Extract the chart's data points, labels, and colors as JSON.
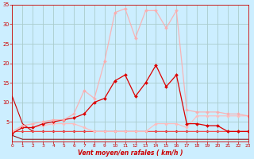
{
  "xlabel": "Vent moyen/en rafales ( km/h )",
  "background_color": "#cceeff",
  "grid_color": "#aacccc",
  "xlim": [
    0,
    23
  ],
  "ylim": [
    0,
    35
  ],
  "yticks": [
    5,
    10,
    15,
    20,
    25,
    30,
    35
  ],
  "xticks": [
    0,
    1,
    2,
    3,
    4,
    5,
    6,
    7,
    8,
    9,
    10,
    11,
    12,
    13,
    14,
    15,
    16,
    17,
    18,
    19,
    20,
    21,
    22,
    23
  ],
  "series": [
    {
      "x": [
        0,
        1,
        2,
        3,
        4,
        5,
        6,
        7,
        8,
        9,
        10,
        11,
        12,
        13,
        14,
        15,
        16,
        17,
        18,
        19,
        20,
        21,
        22,
        23
      ],
      "y": [
        11.5,
        4.5,
        2.5,
        2.5,
        2.5,
        2.5,
        2.5,
        2.5,
        2.5,
        2.5,
        2.5,
        2.5,
        2.5,
        2.5,
        2.5,
        2.5,
        2.5,
        2.5,
        2.5,
        2.5,
        2.5,
        2.5,
        2.5,
        2.5
      ],
      "color": "#cc0000",
      "lw": 0.8,
      "marker": null,
      "alpha": 1.0
    },
    {
      "x": [
        0,
        1,
        2,
        3,
        4,
        5,
        6,
        7,
        8,
        9,
        10,
        11,
        12,
        13,
        14,
        15,
        16,
        17,
        18,
        19,
        20,
        21,
        22,
        23
      ],
      "y": [
        2.5,
        2.5,
        2.5,
        2.5,
        2.5,
        2.5,
        2.5,
        2.5,
        2.5,
        2.5,
        2.5,
        2.5,
        2.5,
        2.5,
        2.5,
        2.5,
        2.5,
        2.5,
        2.5,
        2.5,
        2.5,
        2.5,
        2.5,
        2.5
      ],
      "color": "#cc0000",
      "lw": 0.7,
      "marker": "D",
      "alpha": 1.0,
      "markersize": 1.5
    },
    {
      "x": [
        0,
        1,
        2,
        3,
        4,
        5,
        6,
        7,
        8,
        9,
        10,
        11,
        12,
        13,
        14,
        15,
        16,
        17,
        18,
        19,
        20,
        21,
        22,
        23
      ],
      "y": [
        1.5,
        0.5,
        0.5,
        0.5,
        0.5,
        0.5,
        0.5,
        0.5,
        0.5,
        0.5,
        0.5,
        0.5,
        0.5,
        0.5,
        0.5,
        0.5,
        0.5,
        0.5,
        0.5,
        0.5,
        0.5,
        0.5,
        0.5,
        0.5
      ],
      "color": "#880000",
      "lw": 0.7,
      "marker": null,
      "alpha": 1.0
    },
    {
      "x": [
        0,
        1,
        2,
        3,
        4,
        5,
        6,
        7,
        8,
        9,
        10,
        11,
        12,
        13,
        14,
        15,
        16,
        17,
        18,
        19,
        20,
        21,
        22,
        23
      ],
      "y": [
        2.5,
        2.5,
        2.5,
        2.5,
        2.5,
        2.5,
        2.5,
        2.5,
        2.5,
        2.5,
        2.5,
        2.5,
        2.5,
        2.5,
        2.5,
        2.5,
        2.5,
        2.5,
        2.5,
        2.5,
        2.5,
        2.5,
        2.5,
        2.5
      ],
      "color": "#ff6666",
      "lw": 0.7,
      "marker": null,
      "alpha": 0.8
    },
    {
      "x": [
        0,
        1,
        2,
        3,
        4,
        5,
        6,
        7,
        8,
        9,
        10,
        11,
        12,
        13,
        14,
        15,
        16,
        17,
        18,
        19,
        20,
        21,
        22,
        23
      ],
      "y": [
        2.5,
        3.5,
        3.5,
        4.0,
        4.5,
        4.5,
        4.5,
        3.5,
        2.5,
        2.5,
        2.5,
        2.5,
        2.5,
        2.5,
        4.5,
        4.5,
        4.5,
        3.5,
        6.5,
        6.5,
        6.5,
        6.5,
        6.5,
        6.5
      ],
      "color": "#ffbbbb",
      "lw": 0.8,
      "marker": "D",
      "alpha": 1.0,
      "markersize": 1.8
    },
    {
      "x": [
        0,
        1,
        2,
        3,
        4,
        5,
        6,
        7,
        8,
        9,
        10,
        11,
        12,
        13,
        14,
        15,
        16,
        17,
        18,
        19,
        20,
        21,
        22,
        23
      ],
      "y": [
        2.0,
        3.5,
        3.5,
        4.5,
        5.0,
        5.5,
        6.0,
        7.0,
        10.0,
        11.0,
        15.5,
        17.0,
        11.5,
        15.0,
        19.5,
        14.0,
        17.0,
        4.5,
        4.5,
        4.0,
        4.0,
        2.5,
        2.5,
        2.5
      ],
      "color": "#dd0000",
      "lw": 0.9,
      "marker": "D",
      "alpha": 1.0,
      "markersize": 2.0
    },
    {
      "x": [
        0,
        1,
        2,
        3,
        4,
        5,
        6,
        7,
        8,
        9,
        10,
        11,
        12,
        13,
        14,
        15,
        16,
        17,
        18,
        19,
        20,
        21,
        22,
        23
      ],
      "y": [
        2.5,
        4.0,
        4.5,
        5.0,
        5.5,
        5.5,
        7.0,
        13.0,
        11.0,
        20.5,
        33.0,
        34.0,
        26.5,
        33.5,
        33.5,
        29.0,
        33.5,
        8.0,
        7.5,
        7.5,
        7.5,
        7.0,
        7.0,
        6.5
      ],
      "color": "#ffaaaa",
      "lw": 0.9,
      "marker": "D",
      "alpha": 0.85,
      "markersize": 2.0
    }
  ],
  "xlabel_color": "#cc0000",
  "tick_color": "#cc0000",
  "axis_color": "#cc0000"
}
